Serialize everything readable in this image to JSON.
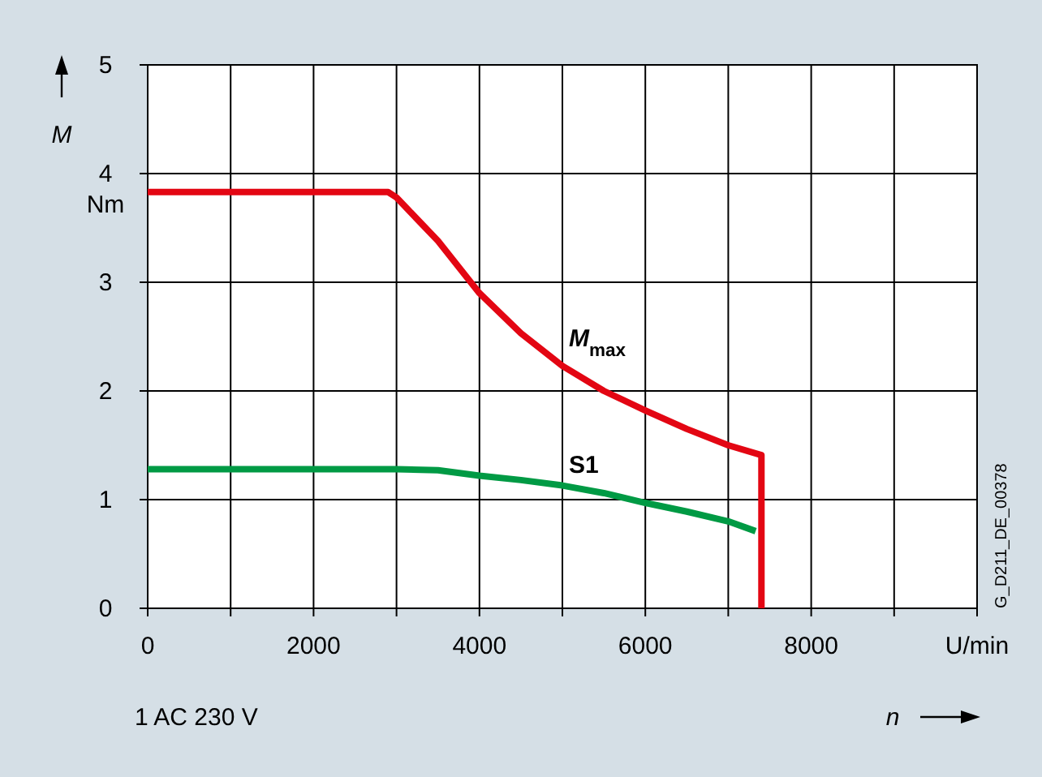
{
  "chart_data": {
    "type": "line",
    "xlabel": "n",
    "ylabel": "M",
    "xlim": [
      0,
      10000
    ],
    "ylim": [
      0,
      5
    ],
    "xticks": [
      0,
      {
        "value": 1000,
        "label": null
      },
      2000,
      {
        "value": 3000,
        "label": null
      },
      4000,
      {
        "value": 5000,
        "label": null
      },
      6000,
      {
        "value": 7000,
        "label": null
      },
      8000,
      {
        "value": 9000,
        "label": null
      },
      {
        "value": 10000,
        "label": "U/min"
      }
    ],
    "yticks": [
      0,
      1,
      2,
      3,
      4,
      5
    ],
    "grid": true,
    "line_style": "solid",
    "marker": "none",
    "annotations": [
      "Nm",
      "G_D211_DE_00378",
      "1 AC 230 V"
    ],
    "series": [
      {
        "name": "M$_{max}$",
        "color": "#e30613",
        "x": [
          0,
          2900,
          3000,
          3500,
          4000,
          4500,
          5000,
          5500,
          6000,
          6500,
          7000,
          7400,
          7400
        ],
        "values": [
          3.83,
          3.83,
          3.78,
          3.38,
          2.9,
          2.53,
          2.23,
          2.0,
          1.82,
          1.65,
          1.5,
          1.41,
          0
        ]
      },
      {
        "name": "S1",
        "color": "#009a44",
        "x": [
          0,
          3000,
          3500,
          4000,
          4500,
          5000,
          5500,
          6000,
          6500,
          7000,
          7330
        ],
        "values": [
          1.28,
          1.28,
          1.27,
          1.22,
          1.18,
          1.13,
          1.06,
          0.97,
          0.89,
          0.8,
          0.71
        ]
      }
    ]
  }
}
